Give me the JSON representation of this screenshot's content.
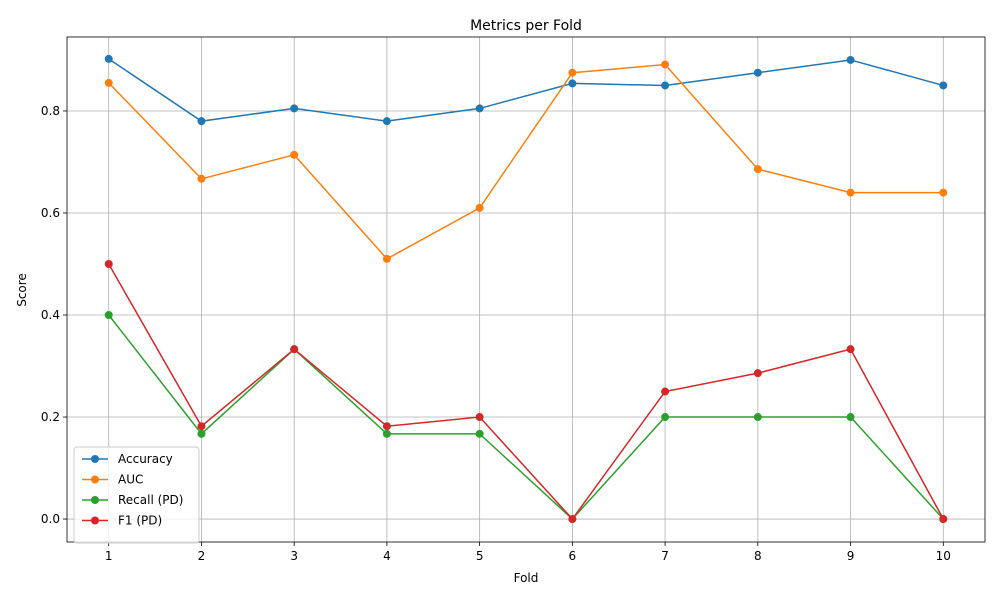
{
  "chart_data": {
    "type": "line",
    "title": "Metrics per Fold",
    "xlabel": "Fold",
    "ylabel": "Score",
    "x": [
      1,
      2,
      3,
      4,
      5,
      6,
      7,
      8,
      9,
      10
    ],
    "xticks": [
      "1",
      "2",
      "3",
      "4",
      "5",
      "6",
      "7",
      "8",
      "9",
      "10"
    ],
    "xlim": [
      0.55,
      10.45
    ],
    "yticks": [
      "0.0",
      "0.2",
      "0.4",
      "0.6",
      "0.8"
    ],
    "ytick_values": [
      0.0,
      0.2,
      0.4,
      0.6,
      0.8
    ],
    "ylim": [
      -0.045,
      0.945
    ],
    "grid": true,
    "legend_position": "lower-left",
    "series": [
      {
        "name": "Accuracy",
        "color": "#1f77b4",
        "values": [
          0.902,
          0.78,
          0.805,
          0.78,
          0.805,
          0.854,
          0.85,
          0.875,
          0.9,
          0.85
        ]
      },
      {
        "name": "AUC",
        "color": "#ff7f0e",
        "values": [
          0.855,
          0.667,
          0.714,
          0.51,
          0.61,
          0.875,
          0.891,
          0.686,
          0.64,
          0.64
        ]
      },
      {
        "name": "Recall (PD)",
        "color": "#2ca02c",
        "values": [
          0.4,
          0.167,
          0.333,
          0.167,
          0.167,
          0.0,
          0.2,
          0.2,
          0.2,
          0.0
        ]
      },
      {
        "name": "F1 (PD)",
        "color": "#d62728",
        "values": [
          0.5,
          0.182,
          0.333,
          0.182,
          0.2,
          0.0,
          0.25,
          0.286,
          0.333,
          0.0
        ]
      }
    ]
  }
}
